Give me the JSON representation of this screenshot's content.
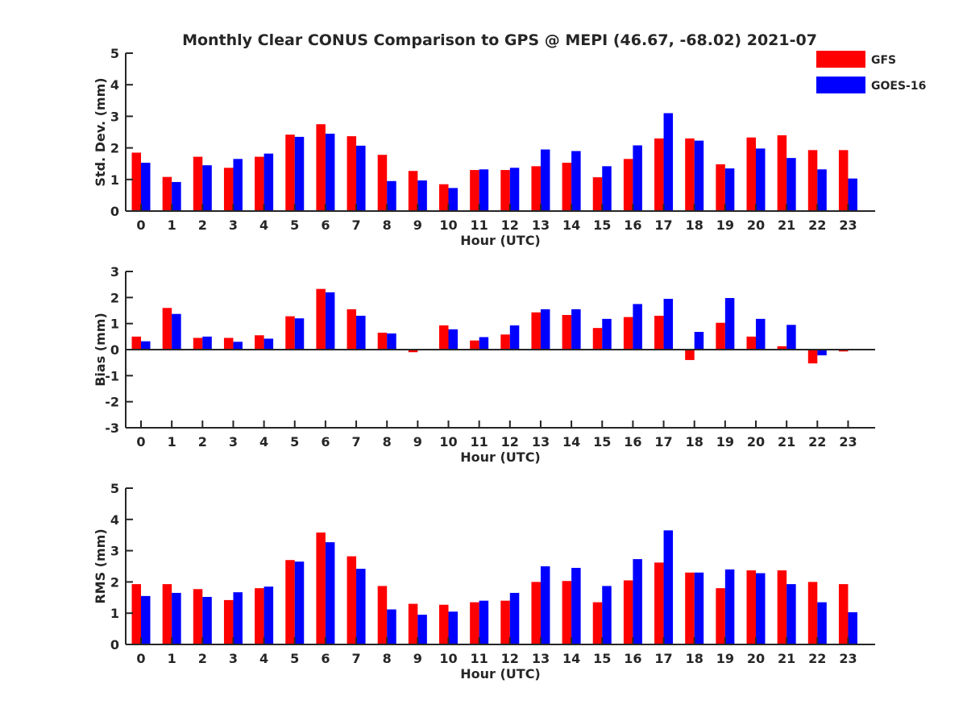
{
  "chart_data": {
    "type": "bar",
    "title": "Monthly Clear CONUS Comparison to GPS @ MEPI (46.67, -68.02) 2021-07",
    "legend": {
      "placement": "top-right",
      "entries": [
        {
          "name": "GFS",
          "color": "#ff0000"
        },
        {
          "name": "GOES-16",
          "color": "#0000ff"
        }
      ]
    },
    "categories": [
      "0",
      "1",
      "2",
      "3",
      "4",
      "5",
      "6",
      "7",
      "8",
      "9",
      "10",
      "11",
      "12",
      "13",
      "14",
      "15",
      "16",
      "17",
      "18",
      "19",
      "20",
      "21",
      "22",
      "23"
    ],
    "panels": [
      {
        "ylabel": "Std. Dev. (mm)",
        "xlabel": "Hour (UTC)",
        "ylim": [
          0,
          5
        ],
        "yticks": [
          "0",
          "1",
          "2",
          "3",
          "4",
          "5"
        ],
        "series": [
          {
            "name": "GFS",
            "color": "#ff0000",
            "values": [
              1.85,
              1.08,
              1.72,
              1.37,
              1.72,
              2.42,
              2.75,
              2.37,
              1.78,
              1.27,
              0.85,
              1.3,
              1.3,
              1.42,
              1.53,
              1.07,
              1.65,
              2.3,
              2.3,
              1.48,
              2.33,
              2.4,
              1.93,
              1.93
            ]
          },
          {
            "name": "GOES-16",
            "color": "#0000ff",
            "values": [
              1.53,
              0.92,
              1.45,
              1.65,
              1.82,
              2.35,
              2.45,
              2.07,
              0.95,
              0.97,
              0.73,
              1.32,
              1.37,
              1.95,
              1.9,
              1.42,
              2.08,
              3.1,
              2.23,
              1.35,
              1.98,
              1.68,
              1.32,
              1.03
            ]
          }
        ]
      },
      {
        "ylabel": "Bias (mm)",
        "xlabel": "Hour (UTC)",
        "ylim": [
          -3,
          3
        ],
        "yticks": [
          "-3",
          "-2",
          "-1",
          "0",
          "1",
          "2",
          "3"
        ],
        "series": [
          {
            "name": "GFS",
            "color": "#ff0000",
            "values": [
              0.5,
              1.6,
              0.45,
              0.45,
              0.55,
              1.28,
              2.33,
              1.55,
              0.65,
              -0.1,
              0.93,
              0.35,
              0.58,
              1.43,
              1.33,
              0.83,
              1.25,
              1.3,
              -0.4,
              1.03,
              0.5,
              0.13,
              -0.53,
              -0.07
            ]
          },
          {
            "name": "GOES-16",
            "color": "#0000ff",
            "values": [
              0.32,
              1.37,
              0.5,
              0.3,
              0.42,
              1.2,
              2.2,
              1.3,
              0.62,
              0.0,
              0.78,
              0.48,
              0.93,
              1.55,
              1.55,
              1.18,
              1.75,
              1.95,
              0.68,
              1.98,
              1.18,
              0.95,
              -0.22,
              0.0
            ]
          }
        ]
      },
      {
        "ylabel": "RMS (mm)",
        "xlabel": "Hour (UTC)",
        "ylim": [
          0,
          5
        ],
        "yticks": [
          "0",
          "1",
          "2",
          "3",
          "4",
          "5"
        ],
        "series": [
          {
            "name": "GFS",
            "color": "#ff0000",
            "values": [
              1.93,
              1.93,
              1.77,
              1.42,
              1.8,
              2.7,
              3.58,
              2.82,
              1.87,
              1.3,
              1.27,
              1.35,
              1.4,
              2.0,
              2.03,
              1.35,
              2.05,
              2.62,
              2.3,
              1.8,
              2.37,
              2.37,
              2.0,
              1.93
            ]
          },
          {
            "name": "GOES-16",
            "color": "#0000ff",
            "values": [
              1.55,
              1.65,
              1.52,
              1.67,
              1.85,
              2.65,
              3.27,
              2.42,
              1.12,
              0.95,
              1.05,
              1.4,
              1.65,
              2.5,
              2.45,
              1.87,
              2.73,
              3.65,
              2.3,
              2.4,
              2.28,
              1.93,
              1.35,
              1.03
            ]
          }
        ]
      }
    ]
  }
}
